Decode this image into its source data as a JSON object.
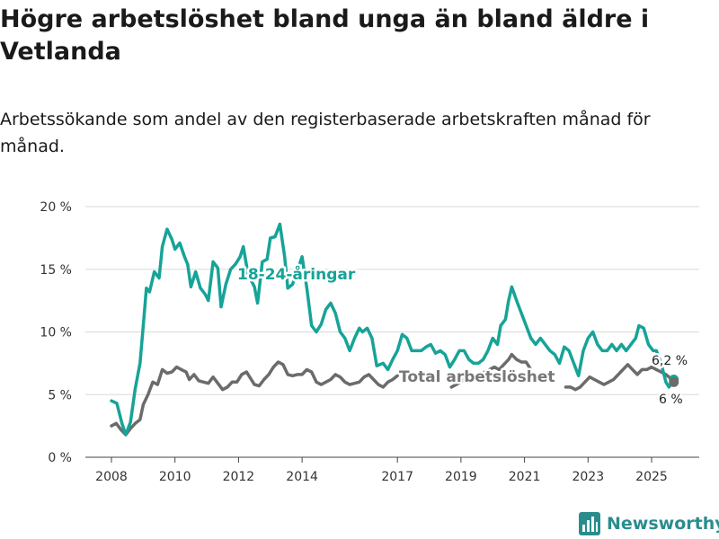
{
  "title": "Högre arbetslöshet bland unga än bland äldre i Vetlanda",
  "subtitle": "Arbetssökande som andel av den registerbaserade arbetskraften månad för månad.",
  "brand": {
    "name": "Newsworthy",
    "logo_icon": "bar-chart-logo-icon",
    "color": "#2a8d8d"
  },
  "chart_data": {
    "type": "line",
    "x_unit": "year",
    "ylim": [
      0,
      20
    ],
    "y_ticks": [
      0,
      5,
      10,
      15,
      20
    ],
    "y_tick_labels": [
      "0 %",
      "5 %",
      "10 %",
      "15 %",
      "20 %"
    ],
    "x_ticks": [
      2008,
      2010,
      2012,
      2014,
      2017,
      2019,
      2021,
      2023,
      2025
    ],
    "x_tick_labels": [
      "2008",
      "2010",
      "2012",
      "2014",
      "2017",
      "2019",
      "2021",
      "2023",
      "2025"
    ],
    "series": [
      {
        "name": "18-24-åringar",
        "color": "#17a398",
        "label": "18-24-åringar",
        "end_label": "6,2 %",
        "points": [
          [
            2008.0,
            4.5
          ],
          [
            2008.17,
            4.3
          ],
          [
            2008.33,
            2.7
          ],
          [
            2008.45,
            1.8
          ],
          [
            2008.6,
            2.8
          ],
          [
            2008.75,
            5.5
          ],
          [
            2008.9,
            7.5
          ],
          [
            2009.0,
            10.5
          ],
          [
            2009.1,
            13.5
          ],
          [
            2009.2,
            13.2
          ],
          [
            2009.35,
            14.8
          ],
          [
            2009.5,
            14.3
          ],
          [
            2009.6,
            16.8
          ],
          [
            2009.75,
            18.2
          ],
          [
            2009.9,
            17.4
          ],
          [
            2010.0,
            16.6
          ],
          [
            2010.15,
            17.1
          ],
          [
            2010.3,
            16.0
          ],
          [
            2010.4,
            15.4
          ],
          [
            2010.5,
            13.6
          ],
          [
            2010.65,
            14.8
          ],
          [
            2010.8,
            13.5
          ],
          [
            2010.95,
            13.0
          ],
          [
            2011.05,
            12.5
          ],
          [
            2011.2,
            15.6
          ],
          [
            2011.35,
            15.1
          ],
          [
            2011.45,
            12.0
          ],
          [
            2011.6,
            13.8
          ],
          [
            2011.75,
            15.0
          ],
          [
            2011.9,
            15.4
          ],
          [
            2012.05,
            16.0
          ],
          [
            2012.15,
            16.8
          ],
          [
            2012.3,
            14.6
          ],
          [
            2012.5,
            13.6
          ],
          [
            2012.6,
            12.3
          ],
          [
            2012.75,
            15.6
          ],
          [
            2012.9,
            15.8
          ],
          [
            2013.0,
            17.5
          ],
          [
            2013.15,
            17.6
          ],
          [
            2013.3,
            18.6
          ],
          [
            2013.45,
            16.0
          ],
          [
            2013.55,
            13.5
          ],
          [
            2013.7,
            13.8
          ],
          [
            2014.0,
            16.0
          ],
          [
            2014.15,
            13.5
          ],
          [
            2014.3,
            10.5
          ],
          [
            2014.45,
            10.0
          ],
          [
            2014.6,
            10.6
          ],
          [
            2014.75,
            11.8
          ],
          [
            2014.9,
            12.3
          ],
          [
            2015.05,
            11.5
          ],
          [
            2015.2,
            10.0
          ],
          [
            2015.35,
            9.5
          ],
          [
            2015.5,
            8.5
          ],
          [
            2015.65,
            9.5
          ],
          [
            2015.8,
            10.3
          ],
          [
            2015.9,
            10.0
          ],
          [
            2016.05,
            10.3
          ],
          [
            2016.2,
            9.5
          ],
          [
            2016.35,
            7.3
          ],
          [
            2016.55,
            7.5
          ],
          [
            2016.7,
            7.0
          ],
          [
            2016.85,
            7.8
          ],
          [
            2017.0,
            8.5
          ],
          [
            2017.15,
            9.8
          ],
          [
            2017.3,
            9.5
          ],
          [
            2017.45,
            8.5
          ],
          [
            2017.6,
            8.5
          ],
          [
            2017.75,
            8.5
          ],
          [
            2017.9,
            8.8
          ],
          [
            2018.05,
            9.0
          ],
          [
            2018.2,
            8.3
          ],
          [
            2018.35,
            8.5
          ],
          [
            2018.5,
            8.2
          ],
          [
            2018.65,
            7.2
          ],
          [
            2018.8,
            7.8
          ],
          [
            2018.95,
            8.5
          ],
          [
            2019.1,
            8.5
          ],
          [
            2019.25,
            7.8
          ],
          [
            2019.4,
            7.5
          ],
          [
            2019.55,
            7.5
          ],
          [
            2019.7,
            7.8
          ],
          [
            2019.85,
            8.5
          ],
          [
            2020.0,
            9.5
          ],
          [
            2020.15,
            9.0
          ],
          [
            2020.25,
            10.5
          ],
          [
            2020.4,
            11.0
          ],
          [
            2020.5,
            12.5
          ],
          [
            2020.6,
            13.6
          ],
          [
            2020.75,
            12.5
          ],
          [
            2020.9,
            11.5
          ],
          [
            2021.05,
            10.5
          ],
          [
            2021.2,
            9.5
          ],
          [
            2021.35,
            9.0
          ],
          [
            2021.5,
            9.5
          ],
          [
            2021.65,
            9.0
          ],
          [
            2021.8,
            8.5
          ],
          [
            2021.95,
            8.2
          ],
          [
            2022.1,
            7.5
          ],
          [
            2022.25,
            8.8
          ],
          [
            2022.4,
            8.5
          ],
          [
            2022.55,
            7.5
          ],
          [
            2022.7,
            6.5
          ],
          [
            2022.85,
            8.5
          ],
          [
            2023.0,
            9.5
          ],
          [
            2023.15,
            10.0
          ],
          [
            2023.3,
            9.0
          ],
          [
            2023.45,
            8.5
          ],
          [
            2023.6,
            8.5
          ],
          [
            2023.75,
            9.0
          ],
          [
            2023.9,
            8.5
          ],
          [
            2024.05,
            9.0
          ],
          [
            2024.2,
            8.5
          ],
          [
            2024.35,
            9.0
          ],
          [
            2024.5,
            9.5
          ],
          [
            2024.6,
            10.5
          ],
          [
            2024.75,
            10.3
          ],
          [
            2024.9,
            9.0
          ],
          [
            2025.05,
            8.5
          ],
          [
            2025.15,
            8.5
          ],
          [
            2025.3,
            7.5
          ],
          [
            2025.45,
            6.0
          ],
          [
            2025.55,
            5.6
          ],
          [
            2025.7,
            6.2
          ]
        ]
      },
      {
        "name": "Total arbetslöshet",
        "color": "#6b6b6b",
        "label": "Total arbetslöshet",
        "end_label": "6 %",
        "points": [
          [
            2008.0,
            2.5
          ],
          [
            2008.15,
            2.7
          ],
          [
            2008.3,
            2.2
          ],
          [
            2008.45,
            1.8
          ],
          [
            2008.6,
            2.3
          ],
          [
            2008.75,
            2.7
          ],
          [
            2008.9,
            3.0
          ],
          [
            2009.0,
            4.2
          ],
          [
            2009.15,
            5.0
          ],
          [
            2009.3,
            6.0
          ],
          [
            2009.45,
            5.8
          ],
          [
            2009.6,
            7.0
          ],
          [
            2009.75,
            6.7
          ],
          [
            2009.9,
            6.8
          ],
          [
            2010.05,
            7.2
          ],
          [
            2010.2,
            7.0
          ],
          [
            2010.35,
            6.8
          ],
          [
            2010.45,
            6.2
          ],
          [
            2010.6,
            6.6
          ],
          [
            2010.75,
            6.1
          ],
          [
            2010.9,
            6.0
          ],
          [
            2011.05,
            5.9
          ],
          [
            2011.2,
            6.4
          ],
          [
            2011.35,
            5.9
          ],
          [
            2011.5,
            5.4
          ],
          [
            2011.65,
            5.6
          ],
          [
            2011.8,
            6.0
          ],
          [
            2011.95,
            6.0
          ],
          [
            2012.1,
            6.6
          ],
          [
            2012.25,
            6.8
          ],
          [
            2012.4,
            6.2
          ],
          [
            2012.5,
            5.8
          ],
          [
            2012.65,
            5.7
          ],
          [
            2012.8,
            6.2
          ],
          [
            2012.95,
            6.6
          ],
          [
            2013.1,
            7.2
          ],
          [
            2013.25,
            7.6
          ],
          [
            2013.4,
            7.4
          ],
          [
            2013.55,
            6.6
          ],
          [
            2013.7,
            6.5
          ],
          [
            2013.85,
            6.6
          ],
          [
            2014.0,
            6.6
          ],
          [
            2014.15,
            7.0
          ],
          [
            2014.3,
            6.8
          ],
          [
            2014.45,
            6.0
          ],
          [
            2014.6,
            5.8
          ],
          [
            2014.75,
            6.0
          ],
          [
            2014.9,
            6.2
          ],
          [
            2015.05,
            6.6
          ],
          [
            2015.2,
            6.4
          ],
          [
            2015.35,
            6.0
          ],
          [
            2015.5,
            5.8
          ],
          [
            2015.65,
            5.9
          ],
          [
            2015.8,
            6.0
          ],
          [
            2015.95,
            6.4
          ],
          [
            2016.1,
            6.6
          ],
          [
            2016.25,
            6.2
          ],
          [
            2016.4,
            5.8
          ],
          [
            2016.55,
            5.6
          ],
          [
            2016.7,
            6.0
          ],
          [
            2016.85,
            6.2
          ],
          [
            2017.0,
            6.5
          ],
          [
            2018.7,
            5.6
          ],
          [
            2018.85,
            5.8
          ],
          [
            2019.0,
            6.0
          ],
          [
            2019.15,
            6.4
          ],
          [
            2019.3,
            6.6
          ],
          [
            2019.45,
            6.5
          ],
          [
            2019.6,
            6.6
          ],
          [
            2019.75,
            6.8
          ],
          [
            2019.9,
            7.0
          ],
          [
            2020.05,
            7.2
          ],
          [
            2020.2,
            7.0
          ],
          [
            2020.35,
            7.4
          ],
          [
            2020.5,
            7.8
          ],
          [
            2020.6,
            8.2
          ],
          [
            2020.75,
            7.8
          ],
          [
            2020.9,
            7.6
          ],
          [
            2021.05,
            7.6
          ],
          [
            2021.2,
            7.0
          ],
          [
            2022.3,
            5.6
          ],
          [
            2022.45,
            5.6
          ],
          [
            2022.6,
            5.4
          ],
          [
            2022.75,
            5.6
          ],
          [
            2022.9,
            6.0
          ],
          [
            2023.05,
            6.4
          ],
          [
            2023.2,
            6.2
          ],
          [
            2023.35,
            6.0
          ],
          [
            2023.5,
            5.8
          ],
          [
            2023.65,
            6.0
          ],
          [
            2023.8,
            6.2
          ],
          [
            2023.95,
            6.6
          ],
          [
            2024.1,
            7.0
          ],
          [
            2024.25,
            7.4
          ],
          [
            2024.4,
            7.0
          ],
          [
            2024.55,
            6.6
          ],
          [
            2024.7,
            7.0
          ],
          [
            2024.85,
            7.0
          ],
          [
            2025.0,
            7.2
          ],
          [
            2025.15,
            7.0
          ],
          [
            2025.3,
            6.8
          ],
          [
            2025.45,
            6.6
          ],
          [
            2025.55,
            6.4
          ],
          [
            2025.7,
            6.0
          ]
        ]
      }
    ]
  }
}
